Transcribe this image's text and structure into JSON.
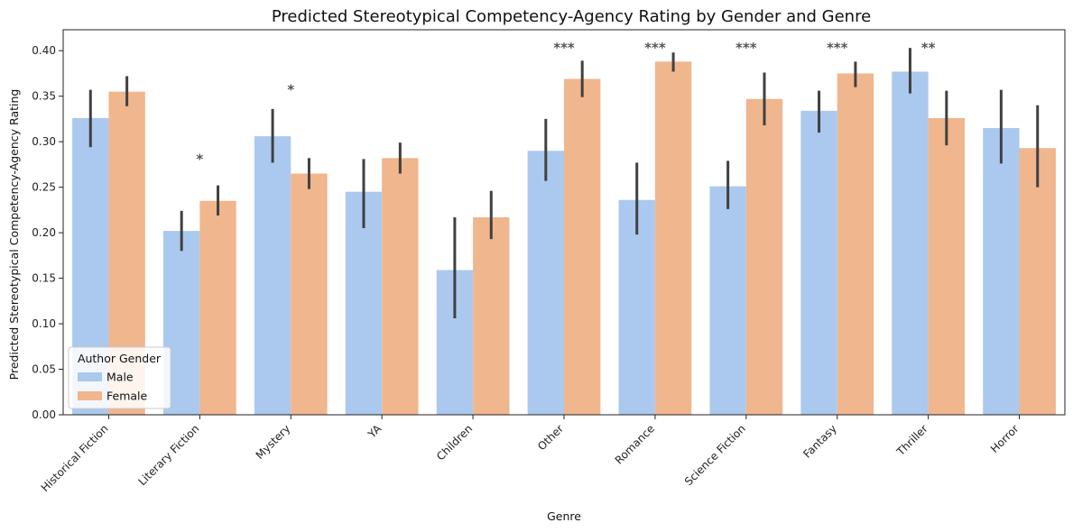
{
  "chart_data": {
    "type": "bar",
    "title": "Predicted Stereotypical Competency-Agency Rating by Gender and Genre",
    "xlabel": "Genre",
    "ylabel": "Predicted Stereotypical Competency-Agency Rating",
    "ylim": [
      0,
      0.423
    ],
    "yticks": [
      "0.00",
      "0.05",
      "0.10",
      "0.15",
      "0.20",
      "0.25",
      "0.30",
      "0.35",
      "0.40"
    ],
    "categories": [
      "Historical Fiction",
      "Literary Fiction",
      "Mystery",
      "YA",
      "Children",
      "Other",
      "Romance",
      "Science Fiction",
      "Fantasy",
      "Thriller",
      "Horror"
    ],
    "series": [
      {
        "name": "Male",
        "color": "#abc9ee",
        "values": [
          0.326,
          0.202,
          0.306,
          0.245,
          0.159,
          0.29,
          0.236,
          0.251,
          0.334,
          0.377,
          0.315
        ],
        "ci": [
          [
            0.294,
            0.357
          ],
          [
            0.18,
            0.224
          ],
          [
            0.277,
            0.336
          ],
          [
            0.205,
            0.281
          ],
          [
            0.106,
            0.217
          ],
          [
            0.257,
            0.325
          ],
          [
            0.198,
            0.277
          ],
          [
            0.226,
            0.279
          ],
          [
            0.31,
            0.356
          ],
          [
            0.353,
            0.403
          ],
          [
            0.276,
            0.357
          ]
        ]
      },
      {
        "name": "Female",
        "color": "#f0b68e",
        "values": [
          0.355,
          0.235,
          0.265,
          0.282,
          0.217,
          0.369,
          0.388,
          0.347,
          0.375,
          0.326,
          0.293
        ],
        "ci": [
          [
            0.339,
            0.372
          ],
          [
            0.219,
            0.252
          ],
          [
            0.248,
            0.282
          ],
          [
            0.265,
            0.299
          ],
          [
            0.193,
            0.246
          ],
          [
            0.349,
            0.389
          ],
          [
            0.377,
            0.398
          ],
          [
            0.318,
            0.376
          ],
          [
            0.36,
            0.388
          ],
          [
            0.296,
            0.356
          ],
          [
            0.25,
            0.34
          ]
        ]
      }
    ],
    "significance": [
      {
        "category": "Literary Fiction",
        "label": "*",
        "y": 0.287
      },
      {
        "category": "Mystery",
        "label": "*",
        "y": 0.363
      },
      {
        "category": "Other",
        "label": "***",
        "y": 0.409
      },
      {
        "category": "Romance",
        "label": "***",
        "y": 0.409
      },
      {
        "category": "Science Fiction",
        "label": "***",
        "y": 0.409
      },
      {
        "category": "Fantasy",
        "label": "***",
        "y": 0.409
      },
      {
        "category": "Thriller",
        "label": "**",
        "y": 0.409
      }
    ],
    "legend": {
      "title": "Author Gender",
      "placement": "lower-left"
    },
    "grid": false,
    "error_bar_color": "#404040"
  }
}
